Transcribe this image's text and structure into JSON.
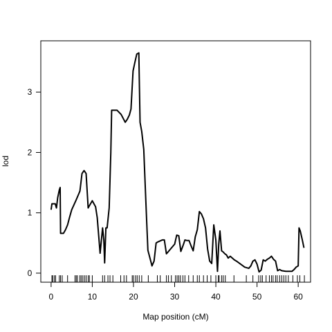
{
  "chart_data": {
    "type": "line",
    "title": "",
    "xlabel": "Map position (cM)",
    "ylabel": "lod",
    "xlim": [
      -2.5,
      63
    ],
    "ylim": [
      -0.15,
      3.85
    ],
    "x_ticks": [
      0,
      10,
      20,
      30,
      40,
      50,
      60
    ],
    "y_ticks": [
      0,
      1,
      2,
      3
    ],
    "grid": false,
    "legend": "none",
    "line_color": "#000000",
    "series": [
      {
        "x": [
          0,
          0.2,
          0.5,
          1.0,
          1.3,
          1.6,
          2.0,
          2.2,
          2.3,
          2.6,
          3.0,
          3.5,
          4.0,
          4.5,
          5.0,
          6.0,
          7.0,
          7.5,
          8.0,
          8.5,
          9.0,
          9.4,
          10.0,
          10.8,
          11.2,
          11.9,
          12.5,
          12.8,
          13.0,
          13.3,
          13.6,
          14.1,
          14.5,
          14.7,
          15.0,
          16.0,
          17.0,
          18.0,
          18.5,
          19.0,
          19.4,
          19.9,
          20.3,
          20.8,
          21.3,
          21.6,
          22.0,
          22.5,
          23.0,
          23.5,
          24.0,
          24.5,
          25.0,
          25.5,
          26.0,
          27.0,
          27.5,
          28.0,
          29.0,
          30.0,
          30.5,
          31.0,
          31.5,
          32.0,
          32.5,
          33.0,
          33.5,
          34.0,
          34.5,
          35.0,
          35.5,
          36.0,
          36.5,
          37.0,
          37.5,
          38.0,
          38.5,
          39.0,
          39.5,
          40.0,
          40.4,
          40.7,
          41.0,
          41.4,
          41.8,
          42.2,
          42.6,
          43.0,
          43.5,
          44.0,
          44.5,
          45.0,
          46.0,
          47.0,
          48.0,
          48.5,
          49.0,
          49.5,
          50.0,
          50.5,
          51.0,
          51.5,
          52.0,
          52.5,
          53.0,
          53.5,
          54.0,
          54.5,
          55.0,
          55.5,
          56.0,
          57.0,
          58.0,
          58.5,
          59.0,
          59.5,
          60.0,
          60.2,
          60.5,
          61.0,
          61.4
        ],
        "values": [
          1.05,
          1.15,
          1.15,
          1.15,
          1.08,
          1.25,
          1.38,
          1.42,
          0.66,
          0.66,
          0.66,
          0.72,
          0.8,
          0.93,
          1.05,
          1.2,
          1.36,
          1.65,
          1.7,
          1.65,
          1.08,
          1.13,
          1.2,
          1.1,
          0.92,
          0.33,
          0.75,
          0.55,
          0.17,
          0.75,
          0.75,
          1.08,
          2.0,
          2.7,
          2.7,
          2.7,
          2.63,
          2.5,
          2.55,
          2.62,
          2.72,
          3.35,
          3.48,
          3.63,
          3.65,
          2.5,
          2.35,
          2.05,
          1.2,
          0.38,
          0.25,
          0.12,
          0.2,
          0.5,
          0.52,
          0.55,
          0.55,
          0.32,
          0.4,
          0.48,
          0.63,
          0.62,
          0.36,
          0.45,
          0.55,
          0.54,
          0.54,
          0.45,
          0.37,
          0.6,
          0.72,
          1.02,
          0.98,
          0.9,
          0.75,
          0.4,
          0.2,
          0.16,
          0.8,
          0.55,
          0.03,
          0.48,
          0.7,
          0.37,
          0.35,
          0.32,
          0.3,
          0.25,
          0.28,
          0.25,
          0.22,
          0.2,
          0.15,
          0.1,
          0.08,
          0.12,
          0.2,
          0.22,
          0.15,
          0.02,
          0.05,
          0.22,
          0.2,
          0.23,
          0.25,
          0.28,
          0.23,
          0.2,
          0.04,
          0.06,
          0.04,
          0.03,
          0.03,
          0.03,
          0.06,
          0.1,
          0.12,
          0.75,
          0.7,
          0.55,
          0.42
        ]
      }
    ],
    "marker_positions": [
      0.2,
      0.4,
      0.8,
      1.1,
      2.0,
      2.3,
      2.7,
      4.0,
      5.8,
      6.1,
      6.4,
      7.0,
      7.3,
      7.7,
      8.1,
      8.5,
      9.0,
      9.3,
      10.0,
      12.5,
      13.0,
      13.8,
      14.3,
      15.0,
      16.9,
      17.7,
      18.3,
      19.7,
      20.0,
      20.5,
      20.9,
      21.4,
      22.0,
      23.6,
      25.8,
      26.5,
      28.0,
      28.5,
      29.2,
      30.2,
      30.6,
      31.0,
      31.4,
      32.0,
      32.5,
      33.4,
      34.5,
      35.5,
      36.0,
      37.0,
      37.9,
      38.8,
      40.0,
      40.6,
      40.8,
      41.4,
      41.8,
      42.3,
      44.4,
      47.4,
      49.0,
      50.4,
      50.9,
      51.3,
      52.2,
      53.0,
      53.5,
      53.9,
      54.5,
      54.9,
      55.5,
      56.0,
      56.5,
      57.0,
      57.6,
      58.7,
      59.8,
      60.4,
      61.5
    ]
  }
}
